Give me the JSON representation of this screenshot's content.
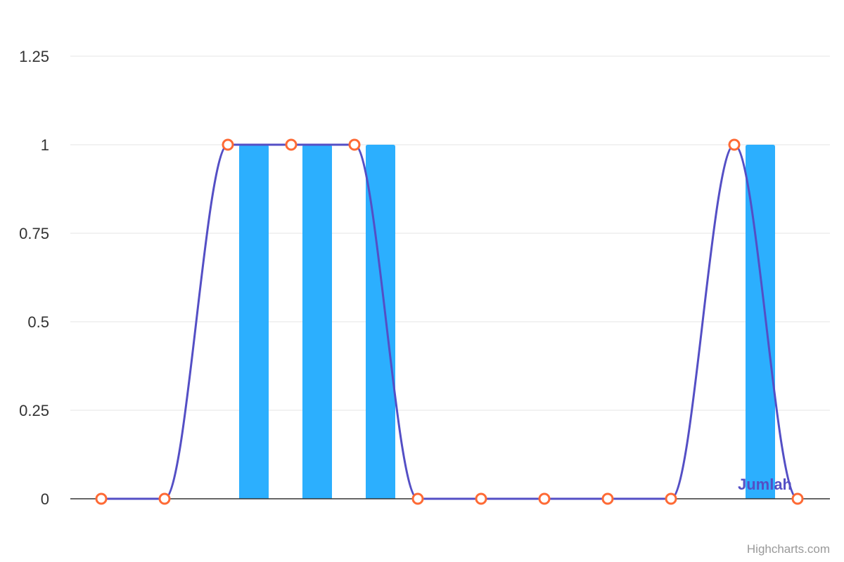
{
  "chart_data": {
    "type": "bar",
    "categories": [
      "",
      "",
      "",
      "",
      "",
      "",
      "",
      "",
      "",
      "",
      "",
      ""
    ],
    "series": [
      {
        "kind": "bar",
        "values": [
          0,
          0,
          1,
          1,
          1,
          0,
          0,
          0,
          0,
          0,
          1,
          0
        ]
      },
      {
        "kind": "line",
        "name": "Jumlah",
        "values": [
          0,
          0,
          1,
          1,
          1,
          0,
          0,
          0,
          0,
          0,
          1,
          0
        ]
      }
    ],
    "ylim": [
      0,
      1.25
    ],
    "yticks": [
      "0",
      "0.25",
      "0.5",
      "0.75",
      "1",
      "1.25"
    ],
    "grid": true,
    "colors": {
      "bar": "#2caffe",
      "line": "#544fc5",
      "marker": "#fe6a35"
    }
  },
  "credits": "Highcharts.com"
}
